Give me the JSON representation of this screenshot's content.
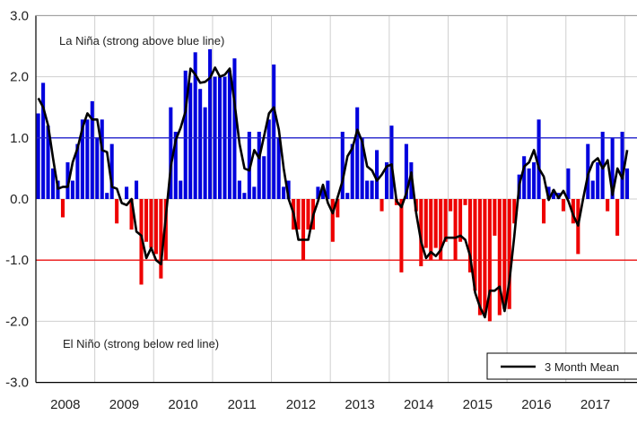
{
  "chart_data": {
    "type": "bar",
    "title": "",
    "xlabel": "",
    "ylabel": "",
    "ylim": [
      -3,
      3
    ],
    "yticks": [
      3,
      2,
      1,
      0,
      -1,
      -2,
      -3
    ],
    "ytick_labels": [
      "3.0",
      "2.0",
      "1.0",
      "0.0",
      "1.0",
      "2.0",
      "3.0"
    ],
    "xtick_labels": [
      "2008",
      "2009",
      "2010",
      "2011",
      "2012",
      "2013",
      "2014",
      "2015",
      "2016",
      "2017"
    ],
    "x_start": "2008-01",
    "grid": true,
    "reference_lines": [
      {
        "value": 1,
        "color": "#2222cc"
      },
      {
        "value": -1,
        "color": "#ee1111"
      }
    ],
    "annotations": {
      "la_nina": "La Niña (strong above blue line)",
      "el_nino": "El Niño (strong below red line)"
    },
    "legend": {
      "position": "bottom-right",
      "entries": [
        "3 Month Mean"
      ]
    },
    "colors": {
      "positive": "#0000dd",
      "negative": "#ee0000",
      "mean_line": "#000000"
    },
    "monthly_values": [
      1.4,
      1.9,
      1.2,
      0.5,
      0.3,
      -0.3,
      0.6,
      0.3,
      0.9,
      1.3,
      1.3,
      1.6,
      1.0,
      1.3,
      0.1,
      0.9,
      -0.4,
      0.0,
      0.2,
      -0.5,
      0.3,
      -1.4,
      -0.7,
      -0.8,
      -0.9,
      -1.3,
      -1.0,
      1.5,
      1.1,
      0.3,
      2.1,
      1.9,
      2.4,
      1.8,
      1.5,
      2.45,
      2.0,
      2.0,
      2.0,
      2.1,
      2.3,
      0.3,
      0.1,
      1.1,
      0.2,
      1.1,
      0.7,
      1.3,
      2.2,
      1.0,
      0.2,
      0.3,
      -0.5,
      -0.5,
      -1.0,
      -0.5,
      -0.5,
      0.2,
      0.2,
      0.3,
      -0.7,
      -0.3,
      1.1,
      0.1,
      0.9,
      1.5,
      1.0,
      0.3,
      0.3,
      0.8,
      -0.2,
      0.6,
      1.2,
      -0.1,
      -1.2,
      0.9,
      0.6,
      -0.2,
      -1.1,
      -0.8,
      -1.0,
      -0.8,
      -1.0,
      -0.7,
      -0.2,
      -1.0,
      -0.7,
      -0.1,
      -1.2,
      -1.5,
      -1.9,
      -1.9,
      -2.0,
      -0.6,
      -1.9,
      -1.8,
      -1.8,
      -0.4,
      0.4,
      0.7,
      0.5,
      0.6,
      1.3,
      -0.4,
      0.2,
      0.15,
      0.1,
      -0.2,
      0.5,
      -0.4,
      -0.9,
      0.0,
      0.9,
      0.3,
      0.6,
      1.1,
      -0.2,
      1.0,
      -0.6,
      1.1,
      0.5
    ]
  }
}
